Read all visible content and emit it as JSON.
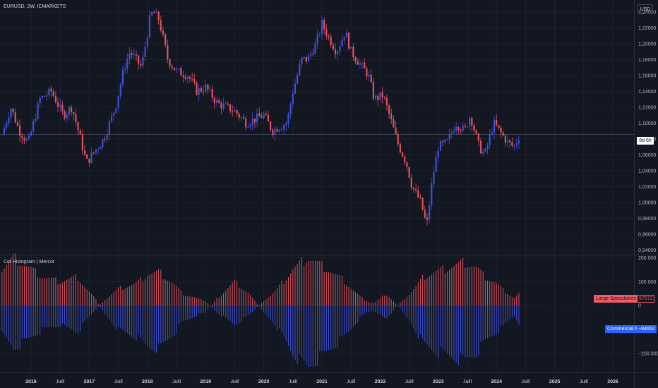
{
  "header": {
    "title": "EURUSD, 2W, ICMARKETS",
    "currency": "USD",
    "price_tag": "8d 6h"
  },
  "indicator": {
    "title": "Cot Histogram | Mercor",
    "large_label": "Large Speculators Net",
    "large_value": "57572",
    "commercial_label": "Commercial Net",
    "commercial_value": "−84652"
  },
  "colors": {
    "background": "#131722",
    "bull": "#3f51d6",
    "bear": "#e0535d",
    "grid": "#1e222d",
    "commercial_tag": "#2962ff",
    "large_tag": "#f05b64"
  },
  "chart_data": [
    {
      "type": "candlestick",
      "title": "EURUSD, 2W, ICMARKETS",
      "ylim": [
        0.935,
        1.255
      ],
      "y_ticks": [
        "1,24000",
        "1,22000",
        "1,20000",
        "1,18000",
        "1,16000",
        "1,14000",
        "1,12000",
        "1,10000",
        "1,08000",
        "1,06000",
        "1,04000",
        "1,02000",
        "1,00000",
        "0,98000",
        "0,96000",
        "0,94000"
      ],
      "y_tick_values": [
        1.24,
        1.22,
        1.2,
        1.18,
        1.16,
        1.14,
        1.12,
        1.1,
        1.08,
        1.06,
        1.04,
        1.02,
        1.0,
        0.98,
        0.96,
        0.94
      ],
      "current_price": 1.0855,
      "x_ticks": [
        "2016",
        "Juill",
        "2017",
        "Juill",
        "2018",
        "Juill",
        "2019",
        "Juill",
        "2020",
        "Juill",
        "2021",
        "Juill",
        "2022",
        "Juill",
        "2023",
        "Juill",
        "2024",
        "Juill",
        "2025",
        "Juill",
        "2026"
      ],
      "x_tick_years": [
        2016,
        2016.5,
        2017,
        2017.5,
        2018,
        2018.5,
        2019,
        2019.5,
        2020,
        2020.5,
        2021,
        2021.5,
        2022,
        2022.5,
        2023,
        2023.5,
        2024,
        2024.5,
        2025,
        2025.5,
        2026
      ],
      "anchors": [
        [
          2015.5,
          1.085
        ],
        [
          2015.65,
          1.12
        ],
        [
          2015.8,
          1.09
        ],
        [
          2015.95,
          1.075
        ],
        [
          2016.15,
          1.13
        ],
        [
          2016.35,
          1.14
        ],
        [
          2016.55,
          1.11
        ],
        [
          2016.7,
          1.12
        ],
        [
          2016.85,
          1.08
        ],
        [
          2016.95,
          1.05
        ],
        [
          2017.1,
          1.065
        ],
        [
          2017.25,
          1.08
        ],
        [
          2017.45,
          1.12
        ],
        [
          2017.6,
          1.17
        ],
        [
          2017.7,
          1.19
        ],
        [
          2017.9,
          1.17
        ],
        [
          2018.05,
          1.235
        ],
        [
          2018.1,
          1.24
        ],
        [
          2018.2,
          1.23
        ],
        [
          2018.35,
          1.18
        ],
        [
          2018.5,
          1.165
        ],
        [
          2018.7,
          1.16
        ],
        [
          2018.85,
          1.14
        ],
        [
          2019.0,
          1.145
        ],
        [
          2019.2,
          1.125
        ],
        [
          2019.35,
          1.12
        ],
        [
          2019.5,
          1.115
        ],
        [
          2019.7,
          1.1
        ],
        [
          2019.85,
          1.105
        ],
        [
          2020.0,
          1.11
        ],
        [
          2020.15,
          1.09
        ],
        [
          2020.25,
          1.095
        ],
        [
          2020.4,
          1.1
        ],
        [
          2020.5,
          1.14
        ],
        [
          2020.65,
          1.18
        ],
        [
          2020.75,
          1.18
        ],
        [
          2020.9,
          1.2
        ],
        [
          2021.0,
          1.225
        ],
        [
          2021.1,
          1.21
        ],
        [
          2021.25,
          1.19
        ],
        [
          2021.4,
          1.215
        ],
        [
          2021.5,
          1.19
        ],
        [
          2021.65,
          1.175
        ],
        [
          2021.8,
          1.16
        ],
        [
          2021.9,
          1.13
        ],
        [
          2022.05,
          1.135
        ],
        [
          2022.2,
          1.1
        ],
        [
          2022.3,
          1.075
        ],
        [
          2022.45,
          1.05
        ],
        [
          2022.55,
          1.02
        ],
        [
          2022.7,
          1.0
        ],
        [
          2022.8,
          0.97
        ],
        [
          2022.9,
          1.03
        ],
        [
          2023.0,
          1.07
        ],
        [
          2023.15,
          1.075
        ],
        [
          2023.3,
          1.1
        ],
        [
          2023.45,
          1.09
        ],
        [
          2023.55,
          1.11
        ],
        [
          2023.7,
          1.07
        ],
        [
          2023.8,
          1.06
        ],
        [
          2023.95,
          1.1
        ],
        [
          2024.05,
          1.09
        ],
        [
          2024.2,
          1.075
        ],
        [
          2024.3,
          1.07
        ],
        [
          2024.4,
          1.085
        ]
      ]
    },
    {
      "type": "bar",
      "title": "Cot Histogram | Mercor",
      "ylim": [
        -280000,
        210000
      ],
      "y_ticks": [
        "200 000",
        "100 000",
        "0",
        "−200 000"
      ],
      "y_tick_values": [
        200000,
        100000,
        0,
        -200000
      ],
      "series": [
        {
          "name": "Large Speculators Net",
          "current": 57572,
          "anchors": [
            [
              2015.5,
              -120000
            ],
            [
              2015.7,
              -180000
            ],
            [
              2015.95,
              -140000
            ],
            [
              2016.2,
              -100000
            ],
            [
              2016.5,
              -80000
            ],
            [
              2016.8,
              -110000
            ],
            [
              2016.95,
              -60000
            ],
            [
              2017.1,
              -20000
            ],
            [
              2017.25,
              20000
            ],
            [
              2017.5,
              70000
            ],
            [
              2017.8,
              90000
            ],
            [
              2018.0,
              130000
            ],
            [
              2018.2,
              140000
            ],
            [
              2018.45,
              90000
            ],
            [
              2018.6,
              50000
            ],
            [
              2018.85,
              30000
            ],
            [
              2019.0,
              20000
            ],
            [
              2019.2,
              -30000
            ],
            [
              2019.5,
              -80000
            ],
            [
              2019.75,
              -40000
            ],
            [
              2020.0,
              20000
            ],
            [
              2020.2,
              60000
            ],
            [
              2020.5,
              150000
            ],
            [
              2020.75,
              200000
            ],
            [
              2020.9,
              180000
            ],
            [
              2021.1,
              150000
            ],
            [
              2021.35,
              110000
            ],
            [
              2021.55,
              60000
            ],
            [
              2021.75,
              20000
            ],
            [
              2021.9,
              10000
            ],
            [
              2022.1,
              50000
            ],
            [
              2022.3,
              0
            ],
            [
              2022.55,
              60000
            ],
            [
              2022.75,
              120000
            ],
            [
              2022.95,
              140000
            ],
            [
              2023.2,
              160000
            ],
            [
              2023.45,
              180000
            ],
            [
              2023.65,
              160000
            ],
            [
              2023.8,
              120000
            ],
            [
              2023.95,
              100000
            ],
            [
              2024.1,
              70000
            ],
            [
              2024.3,
              30000
            ],
            [
              2024.42,
              57572
            ]
          ]
        },
        {
          "name": "Commercial Net",
          "current": -84652,
          "anchors": [
            [
              2015.5,
              150000
            ],
            [
              2015.7,
              200000
            ],
            [
              2015.95,
              160000
            ],
            [
              2016.2,
              120000
            ],
            [
              2016.5,
              100000
            ],
            [
              2016.8,
              120000
            ],
            [
              2016.95,
              70000
            ],
            [
              2017.1,
              30000
            ],
            [
              2017.25,
              -30000
            ],
            [
              2017.5,
              -100000
            ],
            [
              2017.8,
              -130000
            ],
            [
              2018.0,
              -170000
            ],
            [
              2018.2,
              -180000
            ],
            [
              2018.45,
              -120000
            ],
            [
              2018.6,
              -70000
            ],
            [
              2018.85,
              -40000
            ],
            [
              2019.0,
              -30000
            ],
            [
              2019.2,
              30000
            ],
            [
              2019.5,
              100000
            ],
            [
              2019.75,
              50000
            ],
            [
              2020.0,
              -30000
            ],
            [
              2020.2,
              -80000
            ],
            [
              2020.5,
              -200000
            ],
            [
              2020.75,
              -260000
            ],
            [
              2020.9,
              -230000
            ],
            [
              2021.1,
              -190000
            ],
            [
              2021.35,
              -140000
            ],
            [
              2021.55,
              -80000
            ],
            [
              2021.75,
              -30000
            ],
            [
              2021.9,
              -20000
            ],
            [
              2022.1,
              -60000
            ],
            [
              2022.3,
              0
            ],
            [
              2022.55,
              -80000
            ],
            [
              2022.75,
              -160000
            ],
            [
              2022.95,
              -190000
            ],
            [
              2023.2,
              -210000
            ],
            [
              2023.45,
              -230000
            ],
            [
              2023.65,
              -200000
            ],
            [
              2023.8,
              -150000
            ],
            [
              2023.95,
              -120000
            ],
            [
              2024.1,
              -90000
            ],
            [
              2024.3,
              -40000
            ],
            [
              2024.42,
              -84652
            ]
          ]
        }
      ]
    }
  ]
}
